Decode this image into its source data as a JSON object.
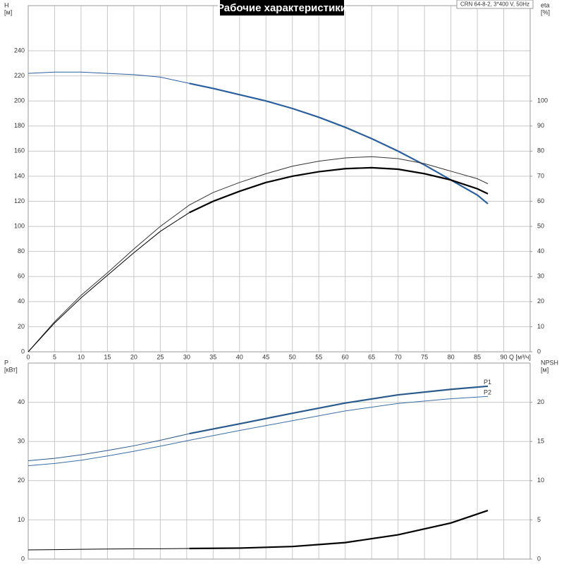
{
  "chart_data": [
    {
      "type": "line",
      "title": "Рабочие характеристики",
      "subtitle": "CRN 64-8-2, 3*400 V, 50Hz",
      "ylabel": "H",
      "yunit": "[м]",
      "y2label": "eta",
      "y2unit": "[%]",
      "xlabel": "Q [м³/ч]",
      "x": [
        0,
        5,
        10,
        15,
        20,
        25,
        30.5,
        35,
        40,
        45,
        50,
        55,
        60,
        65,
        70,
        75,
        80,
        85,
        87
      ],
      "xlim": [
        0,
        95
      ],
      "xticks": [
        0,
        5,
        10,
        15,
        20,
        25,
        30,
        35,
        40,
        45,
        50,
        55,
        60,
        65,
        70,
        75,
        80,
        85,
        90
      ],
      "ylim": [
        0,
        276
      ],
      "yticks": [
        0,
        20,
        40,
        60,
        80,
        100,
        120,
        140,
        160,
        180,
        200,
        220,
        240
      ],
      "y2lim": [
        0,
        138
      ],
      "y2ticks": [
        0,
        10,
        20,
        30,
        40,
        50,
        60,
        70,
        80,
        90,
        100
      ],
      "grid": true,
      "series": [
        {
          "color": "#2a5f9e",
          "bold_from": 30.5,
          "values": [
            222,
            223,
            223,
            222,
            221,
            219,
            214,
            210,
            205,
            200,
            194,
            187,
            179,
            170,
            160,
            149,
            137,
            125,
            118
          ]
        },
        {
          "color": "#333333",
          "axis": "y2",
          "values": [
            0,
            12,
            22.5,
            31.5,
            41,
            50,
            58.5,
            63.5,
            67.5,
            71,
            74,
            76,
            77.3,
            77.8,
            77,
            75,
            72,
            69,
            67
          ]
        },
        {
          "color": "#000000",
          "axis": "y2",
          "bold_from": 30.5,
          "values": [
            0,
            11.5,
            21.5,
            30.5,
            39.5,
            48,
            55.5,
            60,
            64,
            67.5,
            70,
            71.8,
            73,
            73.4,
            72.8,
            71,
            68.5,
            65,
            63
          ]
        }
      ]
    },
    {
      "type": "line",
      "ylabel": "P",
      "yunit": "[кВт]",
      "y2label": "NPSH",
      "y2unit": "[м]",
      "x": [
        0,
        5,
        10,
        15,
        20,
        25,
        30.5,
        40,
        50,
        60,
        70,
        80,
        87
      ],
      "xlim": [
        0,
        95
      ],
      "xticks": [
        0,
        5,
        10,
        15,
        20,
        25,
        30,
        35,
        40,
        45,
        50,
        55,
        60,
        65,
        70,
        75,
        80,
        85,
        90
      ],
      "ylim": [
        0,
        50
      ],
      "yticks": [
        0,
        10,
        20,
        30,
        40
      ],
      "y2lim": [
        0,
        25
      ],
      "y2ticks": [
        0,
        5,
        10,
        15,
        20
      ],
      "grid": true,
      "series": [
        {
          "name": "P1",
          "color": "#2a5a8c",
          "bold_from": 30.5,
          "values": [
            25.1,
            25.7,
            26.6,
            27.7,
            28.9,
            30.3,
            32,
            34.5,
            37.2,
            39.8,
            41.9,
            43.3,
            44.1
          ]
        },
        {
          "name": "P2",
          "color": "#3a6ea5",
          "values": [
            23.8,
            24.4,
            25.2,
            26.3,
            27.5,
            28.8,
            30.3,
            32.8,
            35.3,
            37.8,
            39.7,
            40.9,
            41.5
          ]
        },
        {
          "color": "#000000",
          "axis": "y2",
          "bold_from": 30.5,
          "values": [
            1.17,
            1.2,
            1.25,
            1.28,
            1.3,
            1.32,
            1.35,
            1.4,
            1.6,
            2.1,
            3.1,
            4.6,
            6.2
          ]
        }
      ]
    }
  ]
}
